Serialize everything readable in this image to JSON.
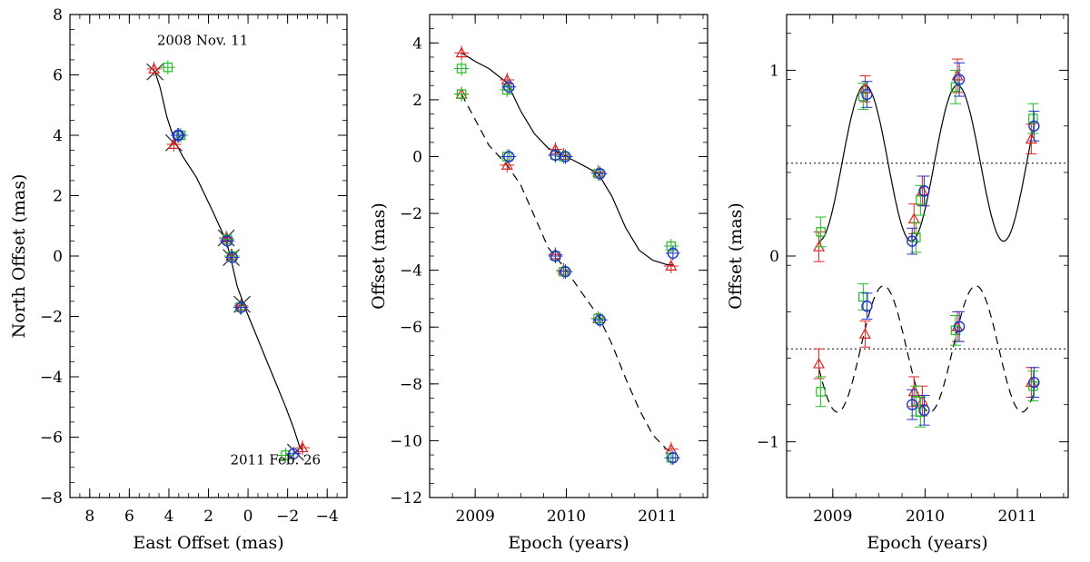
{
  "chart_data": [
    {
      "id": "panel1",
      "type": "scatter",
      "title": "",
      "xlabel": "East Offset (mas)",
      "ylabel": "North Offset (mas)",
      "xlim": [
        9,
        -5
      ],
      "ylim": [
        -8,
        8
      ],
      "x_reversed": true,
      "xticks": [
        8,
        6,
        4,
        2,
        0,
        -2,
        -4
      ],
      "yticks": [
        -8,
        -6,
        -4,
        -2,
        0,
        2,
        4,
        6,
        8
      ],
      "xtick_labels": [
        "8",
        "6",
        "4",
        "2",
        "0",
        "−2",
        "−4"
      ],
      "ytick_labels": [
        "−8",
        "−6",
        "−4",
        "−2",
        "0",
        "2",
        "4",
        "6",
        "8"
      ],
      "annotations": [
        {
          "text": "2008 Nov. 11",
          "x": 4.6,
          "y": 7.0
        },
        {
          "text": "2011 Feb. 26",
          "x": 0.9,
          "y": -6.9
        }
      ],
      "model_curve": {
        "style": "solid",
        "x": [
          4.7,
          4.45,
          4.1,
          3.7,
          3.3,
          2.6,
          1.8,
          1.1,
          0.9,
          0.55,
          0.1,
          -0.4,
          -0.9,
          -1.4,
          -1.9,
          -2.3,
          -2.6,
          -2.8
        ],
        "y": [
          6.1,
          5.6,
          4.6,
          3.8,
          3.3,
          2.6,
          1.5,
          0.5,
          0.0,
          -1.0,
          -1.8,
          -2.6,
          -3.4,
          -4.2,
          -5.0,
          -5.7,
          -6.3,
          -6.5
        ]
      },
      "model_markers_x": [
        [
          4.7,
          6.1
        ],
        [
          3.75,
          3.75
        ],
        [
          1.1,
          0.6
        ],
        [
          0.85,
          -0.05
        ],
        [
          0.3,
          -1.6
        ],
        [
          -2.4,
          -6.5
        ]
      ],
      "series": [
        {
          "name": "",
          "color": "#dd2222",
          "marker": "triangle",
          "x": [
            4.75,
            3.75,
            1.1,
            0.85,
            0.35,
            -2.75
          ],
          "y": [
            6.2,
            3.7,
            0.6,
            0.0,
            -1.65,
            -6.35
          ]
        },
        {
          "name": "",
          "color": "#22bb22",
          "marker": "square",
          "x": [
            4.05,
            3.4,
            1.05,
            0.8,
            0.4,
            -1.9
          ],
          "y": [
            6.25,
            4.0,
            0.55,
            0.0,
            -1.7,
            -6.6
          ]
        },
        {
          "name": "",
          "color": "#2233cc",
          "marker": "circle",
          "x": [
            3.55,
            3.5,
            1.05,
            0.8,
            0.35,
            -2.3
          ],
          "y": [
            4.0,
            4.0,
            0.5,
            -0.05,
            -1.7,
            -6.55
          ]
        }
      ]
    },
    {
      "id": "panel2",
      "type": "scatter",
      "title": "",
      "xlabel": "Epoch (years)",
      "ylabel": "Offset (mas)",
      "xlim": [
        2008.5,
        2011.55
      ],
      "ylim": [
        -12,
        5
      ],
      "xticks": [
        2009,
        2010,
        2011
      ],
      "yticks": [
        -12,
        -10,
        -8,
        -6,
        -4,
        -2,
        0,
        2,
        4
      ],
      "xtick_labels": [
        "2009",
        "2010",
        "2011"
      ],
      "ytick_labels": [
        "−12",
        "−10",
        "−8",
        "−6",
        "−4",
        "−2",
        "0",
        "2",
        "4"
      ],
      "model_curve_solid": {
        "x": [
          2008.85,
          2009.0,
          2009.15,
          2009.35,
          2009.5,
          2009.65,
          2009.8,
          2009.9,
          2010.0,
          2010.15,
          2010.35,
          2010.5,
          2010.65,
          2010.8,
          2010.95,
          2011.1,
          2011.18
        ],
        "y": [
          3.65,
          3.35,
          3.1,
          2.6,
          1.6,
          0.8,
          0.3,
          0.15,
          0.0,
          -0.25,
          -0.6,
          -1.4,
          -2.5,
          -3.3,
          -3.65,
          -3.8,
          -3.82
        ]
      },
      "model_curve_dashed": {
        "x": [
          2008.85,
          2009.0,
          2009.15,
          2009.35,
          2009.5,
          2009.65,
          2009.8,
          2009.9,
          2010.0,
          2010.15,
          2010.35,
          2010.5,
          2010.65,
          2010.8,
          2010.95,
          2011.1,
          2011.18
        ],
        "y": [
          2.2,
          1.3,
          0.4,
          -0.3,
          -1.0,
          -2.1,
          -3.2,
          -3.6,
          -4.0,
          -4.7,
          -5.6,
          -6.6,
          -7.8,
          -8.9,
          -9.8,
          -10.3,
          -10.45
        ]
      },
      "series": [
        {
          "name": "",
          "color": "#dd2222",
          "marker": "triangle",
          "x": [
            2008.85,
            2009.35,
            2009.88,
            2009.97,
            2010.35,
            2011.15,
            2008.85,
            2009.35,
            2009.88,
            2009.97,
            2010.35,
            2011.15
          ],
          "y": [
            3.65,
            2.7,
            0.25,
            0.05,
            -0.55,
            -3.85,
            2.2,
            -0.3,
            -3.45,
            -4.0,
            -5.7,
            -10.3
          ]
        },
        {
          "name": "",
          "color": "#22bb22",
          "marker": "square",
          "x": [
            2008.85,
            2009.35,
            2009.88,
            2009.97,
            2010.35,
            2011.15,
            2008.85,
            2009.35,
            2009.88,
            2009.97,
            2010.35,
            2011.15
          ],
          "y": [
            3.1,
            2.35,
            0.05,
            0.0,
            -0.6,
            -3.15,
            2.2,
            0.0,
            -3.5,
            -4.05,
            -5.7,
            -10.6
          ]
        },
        {
          "name": "",
          "color": "#2233cc",
          "marker": "circle",
          "x": [
            2009.37,
            2009.88,
            2009.99,
            2010.37,
            2011.17,
            2009.37,
            2009.88,
            2009.99,
            2010.37,
            2011.17
          ],
          "y": [
            2.45,
            0.05,
            0.0,
            -0.6,
            -3.4,
            0.0,
            -3.5,
            -4.05,
            -5.75,
            -10.6
          ]
        }
      ]
    },
    {
      "id": "panel3",
      "type": "scatter",
      "title": "",
      "xlabel": "Epoch (years)",
      "ylabel": "Offset (mas)",
      "xlim": [
        2008.5,
        2011.55
      ],
      "ylim": [
        -1.3,
        1.3
      ],
      "xticks": [
        2009,
        2010,
        2011
      ],
      "yticks": [
        -1,
        0,
        1
      ],
      "xtick_labels": [
        "2009",
        "2010",
        "2011"
      ],
      "ytick_labels": [
        "−1",
        "0",
        "1"
      ],
      "reference_lines": [
        0.5,
        -0.5
      ],
      "model_curve_solid": {
        "center": 0.5,
        "amplitude": 0.42,
        "period": 1.0,
        "phase_peak": 2009.35,
        "x_range": [
          2008.85,
          2011.18
        ]
      },
      "model_curve_dashed": {
        "center": -0.5,
        "amplitude": 0.34,
        "period": 1.0,
        "phase_peak": 2009.55,
        "x_range": [
          2008.85,
          2011.18
        ]
      },
      "series": [
        {
          "name": "",
          "color": "#dd2222",
          "marker": "triangle",
          "x": [
            2008.85,
            2009.35,
            2009.88,
            2009.97,
            2010.35,
            2011.15,
            2008.85,
            2009.35,
            2009.88,
            2009.97,
            2010.35,
            2011.15
          ],
          "y": [
            0.05,
            0.9,
            0.2,
            0.35,
            0.97,
            0.63,
            -0.58,
            -0.42,
            -0.73,
            -0.78,
            -0.38,
            -0.68
          ],
          "err": [
            0.08,
            0.07,
            0.08,
            0.08,
            0.09,
            0.08,
            0.08,
            0.07,
            0.08,
            0.08,
            0.08,
            0.08
          ]
        },
        {
          "name": "",
          "color": "#22bb22",
          "marker": "square",
          "x": [
            2008.87,
            2009.33,
            2009.9,
            2009.95,
            2010.33,
            2011.17,
            2008.87,
            2009.33,
            2009.9,
            2009.95,
            2010.33,
            2011.17
          ],
          "y": [
            0.13,
            0.86,
            0.1,
            0.3,
            0.91,
            0.74,
            -0.73,
            -0.22,
            -0.78,
            -0.84,
            -0.4,
            -0.7
          ],
          "err": [
            0.08,
            0.07,
            0.08,
            0.08,
            0.09,
            0.08,
            0.08,
            0.07,
            0.08,
            0.08,
            0.08,
            0.08
          ]
        },
        {
          "name": "",
          "color": "#2233cc",
          "marker": "circle",
          "x": [
            2009.37,
            2009.86,
            2009.99,
            2010.37,
            2011.18,
            2009.37,
            2009.86,
            2009.99,
            2010.37,
            2011.18
          ],
          "y": [
            0.87,
            0.08,
            0.35,
            0.95,
            0.7,
            -0.27,
            -0.8,
            -0.83,
            -0.38,
            -0.68
          ],
          "err": [
            0.07,
            0.07,
            0.08,
            0.09,
            0.08,
            0.07,
            0.08,
            0.08,
            0.08,
            0.08
          ]
        }
      ]
    }
  ]
}
